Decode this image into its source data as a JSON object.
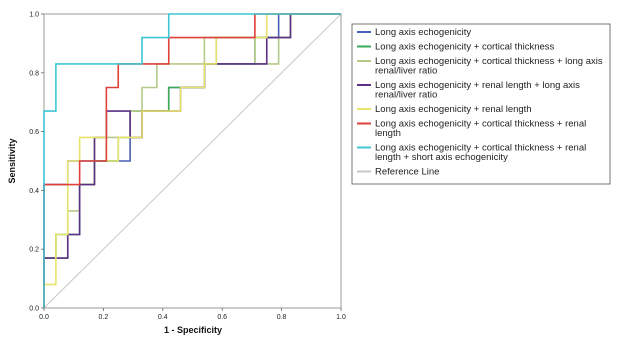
{
  "chart_data": {
    "type": "line",
    "title": "",
    "xlabel": "1 - Specificity",
    "ylabel": "Sensitivity",
    "xlim": [
      0,
      1
    ],
    "ylim": [
      0,
      1
    ],
    "x_ticks": [
      "0.0",
      "0.2",
      "0.4",
      "0.6",
      "0.8",
      "1.0"
    ],
    "y_ticks": [
      "0.0",
      "0.2",
      "0.4",
      "0.6",
      "0.8",
      "1.0"
    ],
    "grid": false,
    "legend_position": "right",
    "series": [
      {
        "name": "Long axis echogenicity",
        "color": "#4a5fb5",
        "points": [
          [
            0,
            0
          ],
          [
            0,
            0.42
          ],
          [
            0.08,
            0.42
          ],
          [
            0.08,
            0.5
          ],
          [
            0.29,
            0.5
          ],
          [
            0.29,
            0.58
          ],
          [
            0.33,
            0.58
          ],
          [
            0.33,
            0.67
          ],
          [
            0.42,
            0.67
          ],
          [
            0.42,
            0.75
          ],
          [
            0.54,
            0.75
          ],
          [
            0.54,
            0.83
          ],
          [
            0.58,
            0.83
          ],
          [
            0.58,
            0.92
          ],
          [
            0.79,
            0.92
          ],
          [
            0.79,
            1.0
          ],
          [
            1.0,
            1.0
          ]
        ]
      },
      {
        "name": "Long axis echogenicity + cortical thickness",
        "color": "#3bab5a",
        "points": [
          [
            0,
            0
          ],
          [
            0,
            0.17
          ],
          [
            0.04,
            0.17
          ],
          [
            0.04,
            0.25
          ],
          [
            0.12,
            0.25
          ],
          [
            0.12,
            0.42
          ],
          [
            0.17,
            0.42
          ],
          [
            0.17,
            0.5
          ],
          [
            0.25,
            0.5
          ],
          [
            0.25,
            0.58
          ],
          [
            0.29,
            0.58
          ],
          [
            0.29,
            0.67
          ],
          [
            0.42,
            0.67
          ],
          [
            0.42,
            0.75
          ],
          [
            0.54,
            0.75
          ],
          [
            0.54,
            0.83
          ],
          [
            0.71,
            0.83
          ],
          [
            0.71,
            0.92
          ],
          [
            0.83,
            0.92
          ],
          [
            0.83,
            1.0
          ],
          [
            1.0,
            1.0
          ]
        ]
      },
      {
        "name": "Long axis echogenicity + cortical thickness + long axis renal/liver ratio",
        "color": "#b5c98a",
        "points": [
          [
            0,
            0
          ],
          [
            0,
            0.17
          ],
          [
            0.08,
            0.17
          ],
          [
            0.08,
            0.33
          ],
          [
            0.12,
            0.33
          ],
          [
            0.12,
            0.42
          ],
          [
            0.17,
            0.42
          ],
          [
            0.17,
            0.58
          ],
          [
            0.29,
            0.58
          ],
          [
            0.29,
            0.67
          ],
          [
            0.33,
            0.67
          ],
          [
            0.33,
            0.75
          ],
          [
            0.38,
            0.75
          ],
          [
            0.38,
            0.83
          ],
          [
            0.54,
            0.83
          ],
          [
            0.54,
            0.92
          ],
          [
            0.71,
            0.92
          ],
          [
            0.71,
            0.83
          ],
          [
            0.79,
            0.83
          ],
          [
            0.79,
            0.92
          ],
          [
            0.83,
            0.92
          ],
          [
            0.83,
            1.0
          ],
          [
            1.0,
            1.0
          ]
        ]
      },
      {
        "name": "Long axis echogenicity + renal length + long axis renal/liver ratio",
        "color": "#5b2f86",
        "points": [
          [
            0,
            0
          ],
          [
            0,
            0.17
          ],
          [
            0.08,
            0.17
          ],
          [
            0.08,
            0.25
          ],
          [
            0.12,
            0.25
          ],
          [
            0.12,
            0.42
          ],
          [
            0.17,
            0.42
          ],
          [
            0.17,
            0.58
          ],
          [
            0.21,
            0.58
          ],
          [
            0.21,
            0.67
          ],
          [
            0.29,
            0.67
          ],
          [
            0.29,
            0.58
          ],
          [
            0.33,
            0.58
          ],
          [
            0.33,
            0.67
          ],
          [
            0.46,
            0.67
          ],
          [
            0.46,
            0.75
          ],
          [
            0.54,
            0.75
          ],
          [
            0.54,
            0.83
          ],
          [
            0.75,
            0.83
          ],
          [
            0.75,
            0.92
          ],
          [
            0.83,
            0.92
          ],
          [
            0.83,
            1.0
          ],
          [
            1.0,
            1.0
          ]
        ]
      },
      {
        "name": "Long axis echogenicity + renal length",
        "color": "#e8e36a",
        "points": [
          [
            0,
            0
          ],
          [
            0,
            0.08
          ],
          [
            0.04,
            0.08
          ],
          [
            0.04,
            0.25
          ],
          [
            0.08,
            0.25
          ],
          [
            0.08,
            0.5
          ],
          [
            0.12,
            0.5
          ],
          [
            0.12,
            0.58
          ],
          [
            0.21,
            0.58
          ],
          [
            0.21,
            0.5
          ],
          [
            0.25,
            0.5
          ],
          [
            0.25,
            0.58
          ],
          [
            0.33,
            0.58
          ],
          [
            0.33,
            0.67
          ],
          [
            0.46,
            0.67
          ],
          [
            0.46,
            0.75
          ],
          [
            0.54,
            0.75
          ],
          [
            0.54,
            0.83
          ],
          [
            0.58,
            0.83
          ],
          [
            0.58,
            0.92
          ],
          [
            0.75,
            0.92
          ],
          [
            0.75,
            1.0
          ],
          [
            1.0,
            1.0
          ]
        ]
      },
      {
        "name": "Long axis echogenicity + cortical thickness + renal length",
        "color": "#e0403a",
        "points": [
          [
            0,
            0
          ],
          [
            0,
            0.42
          ],
          [
            0.12,
            0.42
          ],
          [
            0.12,
            0.5
          ],
          [
            0.21,
            0.5
          ],
          [
            0.21,
            0.75
          ],
          [
            0.25,
            0.75
          ],
          [
            0.25,
            0.83
          ],
          [
            0.42,
            0.83
          ],
          [
            0.42,
            0.92
          ],
          [
            0.71,
            0.92
          ],
          [
            0.71,
            1.0
          ],
          [
            1.0,
            1.0
          ]
        ]
      },
      {
        "name": "Long axis echogenicity + cortical thickness + renal length + short axis echogenicity",
        "color": "#3fc6d4",
        "points": [
          [
            0,
            0
          ],
          [
            0,
            0.67
          ],
          [
            0.04,
            0.67
          ],
          [
            0.04,
            0.83
          ],
          [
            0.33,
            0.83
          ],
          [
            0.33,
            0.92
          ],
          [
            0.42,
            0.92
          ],
          [
            0.42,
            1.0
          ],
          [
            1.0,
            1.0
          ]
        ]
      },
      {
        "name": "Reference Line",
        "color": "#c8c8c8",
        "points": [
          [
            0,
            0
          ],
          [
            1,
            1
          ]
        ]
      }
    ]
  }
}
